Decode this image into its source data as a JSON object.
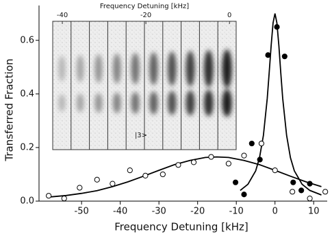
{
  "chart_data": {
    "type": "scatter",
    "xlabel": "Frequency Detuning [kHz]",
    "ylabel": "Transferred Fraction",
    "xlim": [
      -61,
      13.5
    ],
    "ylim": [
      0,
      0.73
    ],
    "xticks": [
      -50,
      -40,
      -30,
      -20,
      -10,
      0,
      10
    ],
    "yticks": [
      {
        "value": 0,
        "label": "0.0"
      },
      0.2,
      0.4,
      0.6
    ],
    "series": [
      {
        "marker": "open",
        "color": "#000000",
        "x": [
          -58.5,
          -54.5,
          -50.5,
          -46,
          -42,
          -37.5,
          -33.5,
          -29,
          -25,
          -21,
          -16.5,
          -12,
          -8,
          -3.5,
          0,
          4.5,
          9,
          13
        ],
        "values": [
          0.02,
          0.01,
          0.05,
          0.08,
          0.065,
          0.115,
          0.095,
          0.1,
          0.135,
          0.145,
          0.165,
          0.14,
          0.17,
          0.215,
          0.115,
          0.035,
          0.01,
          0.035
        ]
      },
      {
        "marker": "filled",
        "color": "#000000",
        "x": [
          -10.2,
          -8,
          -6,
          -3.9,
          -1.8,
          0.5,
          2.5,
          4.7,
          6.8,
          9
        ],
        "values": [
          0.07,
          0.025,
          0.215,
          0.155,
          0.545,
          0.65,
          0.54,
          0.07,
          0.04,
          0.065
        ]
      },
      {
        "marker": "line",
        "color": "#000000",
        "x": [
          -58,
          -54,
          -50,
          -46,
          -42,
          -38,
          -34,
          -30,
          -26,
          -22,
          -18,
          -15,
          -12,
          -8,
          -4,
          0,
          4,
          8,
          12
        ],
        "values": [
          0.016,
          0.021,
          0.029,
          0.039,
          0.054,
          0.072,
          0.093,
          0.115,
          0.136,
          0.152,
          0.163,
          0.165,
          0.163,
          0.152,
          0.136,
          0.115,
          0.093,
          0.072,
          0.054
        ]
      },
      {
        "marker": "line",
        "color": "#000000",
        "x": [
          -9,
          -7,
          -5,
          -4,
          -3,
          -2,
          -1.5,
          -1,
          -0.5,
          0,
          0.5,
          1,
          1.5,
          2,
          3,
          4,
          5,
          7,
          9,
          12
        ],
        "values": [
          0.04,
          0.063,
          0.113,
          0.162,
          0.245,
          0.383,
          0.478,
          0.58,
          0.665,
          0.7,
          0.665,
          0.58,
          0.478,
          0.383,
          0.245,
          0.162,
          0.113,
          0.063,
          0.04,
          0.023
        ]
      }
    ],
    "inset": {
      "xlabel": "Frequency Detuning [kHz]",
      "xlim": [
        -42.3,
        1.6
      ],
      "xticks": [
        -40,
        -20,
        0
      ],
      "state_label": "|3>"
    }
  }
}
